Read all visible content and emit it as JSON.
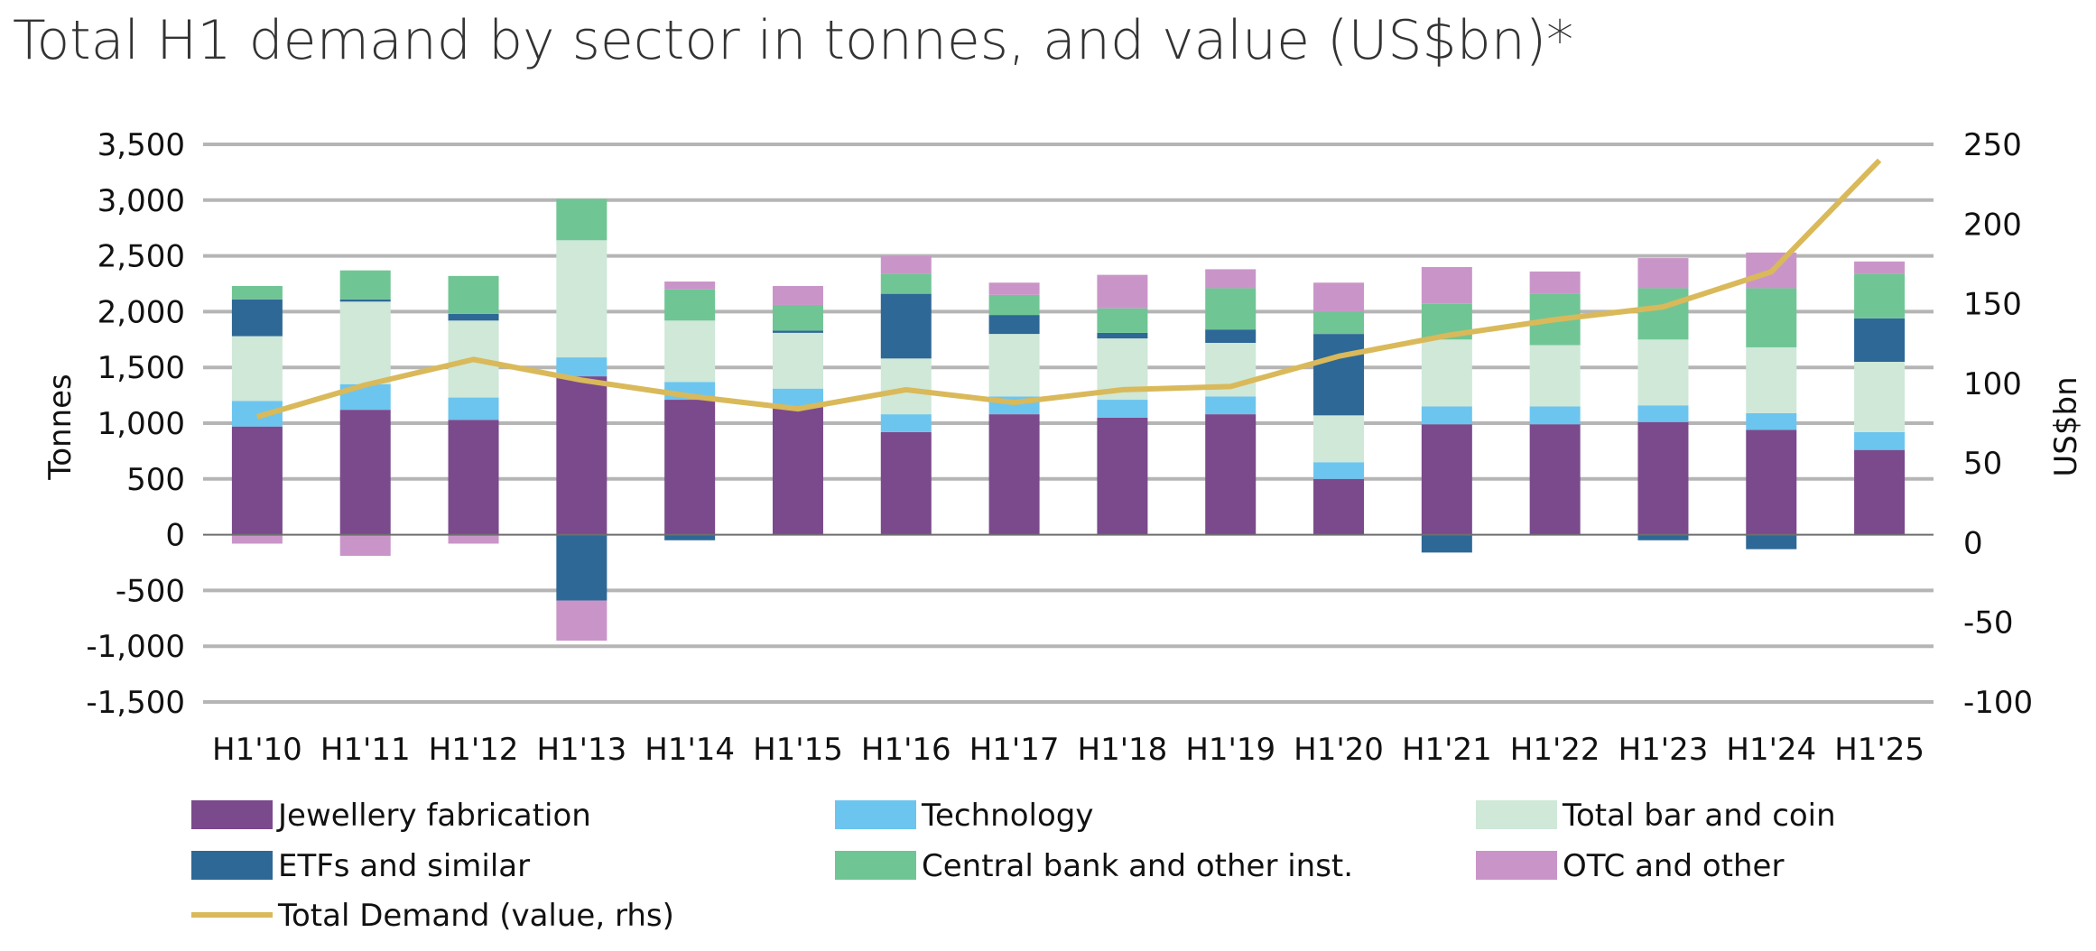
{
  "chart_data": {
    "type": "bar",
    "stacked": true,
    "title": "Total H1 demand by sector in tonnes, and value (US$bn)*",
    "ylabel": "Tonnes",
    "y2label": "US$bn",
    "ylim": [
      -1500,
      3500
    ],
    "y2lim": [
      -100,
      250
    ],
    "yticks": [
      "3,500",
      "3,000",
      "2,500",
      "2,000",
      "1,500",
      "1,000",
      "500",
      "0",
      "-500",
      "-1,000",
      "-1,500"
    ],
    "y2ticks": [
      "250",
      "200",
      "150",
      "100",
      "50",
      "0",
      "-50",
      "-100"
    ],
    "grid": true,
    "legend_position": "bottom",
    "categories": [
      "H1'10",
      "H1'11",
      "H1'12",
      "H1'13",
      "H1'14",
      "H1'15",
      "H1'16",
      "H1'17",
      "H1'18",
      "H1'19",
      "H1'20",
      "H1'21",
      "H1'22",
      "H1'23",
      "H1'24",
      "H1'25"
    ],
    "series": [
      {
        "name": "Jewellery fabrication",
        "color": "#7a4a8c",
        "values": [
          970,
          1120,
          1030,
          1420,
          1210,
          1150,
          920,
          1080,
          1050,
          1080,
          500,
          990,
          990,
          1010,
          940,
          760
        ]
      },
      {
        "name": "Technology",
        "color": "#6cc5ee",
        "values": [
          230,
          230,
          200,
          170,
          160,
          160,
          160,
          160,
          160,
          160,
          150,
          160,
          160,
          150,
          150,
          160
        ]
      },
      {
        "name": "Total bar and coin",
        "color": "#cfe8d8",
        "values": [
          580,
          740,
          690,
          1050,
          550,
          500,
          500,
          560,
          550,
          480,
          420,
          600,
          550,
          590,
          590,
          630
        ]
      },
      {
        "name": "ETFs and similar",
        "color": "#2e6896",
        "values": [
          330,
          20,
          60,
          -590,
          -50,
          20,
          580,
          170,
          50,
          120,
          730,
          -160,
          0,
          -50,
          -130,
          390
        ]
      },
      {
        "name": "Central bank and other inst.",
        "color": "#70c594",
        "values": [
          120,
          260,
          340,
          370,
          280,
          230,
          180,
          180,
          220,
          370,
          200,
          320,
          460,
          460,
          530,
          400
        ]
      },
      {
        "name": "OTC and other",
        "color": "#c995c8",
        "values": [
          -80,
          -190,
          -80,
          -360,
          70,
          170,
          160,
          110,
          300,
          170,
          260,
          330,
          200,
          270,
          320,
          110
        ]
      }
    ],
    "line": {
      "name": "Total Demand (value, rhs)",
      "color": "#d9b95a",
      "axis": "right",
      "values": [
        79,
        99,
        115,
        102,
        92,
        84,
        96,
        88,
        96,
        98,
        117,
        130,
        140,
        148,
        170,
        240
      ]
    }
  }
}
